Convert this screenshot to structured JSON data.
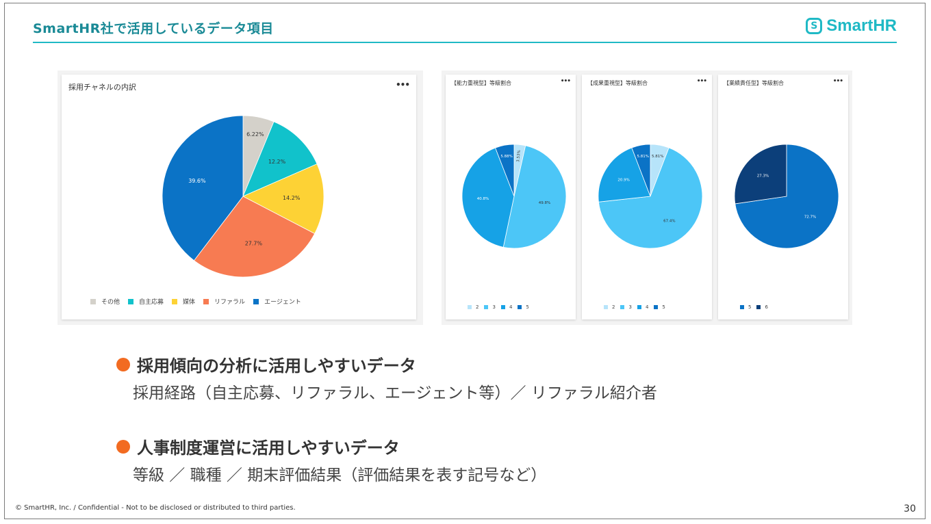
{
  "header": {
    "title": "SmartHR社で活用しているデータ項目",
    "logo_mark": "S",
    "logo_text": "SmartHR"
  },
  "colors": {
    "accent": "#1fb9c5",
    "bullet": "#f26b21"
  },
  "chart_data": [
    {
      "type": "pie",
      "title": "採用チャネルの内訳",
      "categories": [
        "その他",
        "自主応募",
        "媒体",
        "リファラル",
        "エージェント"
      ],
      "values": [
        6.22,
        12.2,
        14.2,
        27.7,
        39.6
      ],
      "labels": [
        "6.22%",
        "12.2%",
        "14.2%",
        "27.7%",
        "39.6%"
      ],
      "colors": [
        "#d4d1ca",
        "#11c2cb",
        "#fdd235",
        "#f77b52",
        "#0b73c6"
      ],
      "legend": "bottom"
    },
    {
      "type": "pie",
      "title": "【能力重視型】等級割合",
      "categories": [
        "2",
        "3",
        "4",
        "5"
      ],
      "values": [
        3.53,
        49.8,
        40.8,
        5.88
      ],
      "labels": [
        "3.53%",
        "49.8%",
        "40.8%",
        "5.88%"
      ],
      "colors": [
        "#b7e4fa",
        "#4cc6f7",
        "#16a2e6",
        "#0b73c6"
      ],
      "legend": "bottom"
    },
    {
      "type": "pie",
      "title": "【成果重視型】等級割合",
      "categories": [
        "2",
        "3",
        "4",
        "5"
      ],
      "values": [
        5.81,
        67.4,
        20.9,
        5.81
      ],
      "labels": [
        "5.81%",
        "67.4%",
        "20.9%",
        "5.81%"
      ],
      "colors": [
        "#b7e4fa",
        "#4cc6f7",
        "#16a2e6",
        "#0b73c6"
      ],
      "legend": "bottom"
    },
    {
      "type": "pie",
      "title": "【業績責任型】等級割合",
      "categories": [
        "5",
        "6"
      ],
      "values": [
        72.7,
        27.3
      ],
      "labels": [
        "72.7%",
        "27.3%"
      ],
      "colors": [
        "#0b73c6",
        "#0c3f7a"
      ],
      "legend": "bottom"
    }
  ],
  "menu_label": "•••",
  "bullets": [
    {
      "heading": "採用傾向の分析に活用しやすいデータ",
      "detail": "採用経路（自主応募、リファラル、エージェント等）／ リファラル紹介者"
    },
    {
      "heading": "人事制度運営に活用しやすいデータ",
      "detail": "等級 ／ 職種 ／ 期末評価結果（評価結果を表す記号など）"
    }
  ],
  "footer": {
    "copyright": "© SmartHR, Inc. / Confidential - Not to be disclosed or distributed to third parties.",
    "page_number": "30"
  }
}
